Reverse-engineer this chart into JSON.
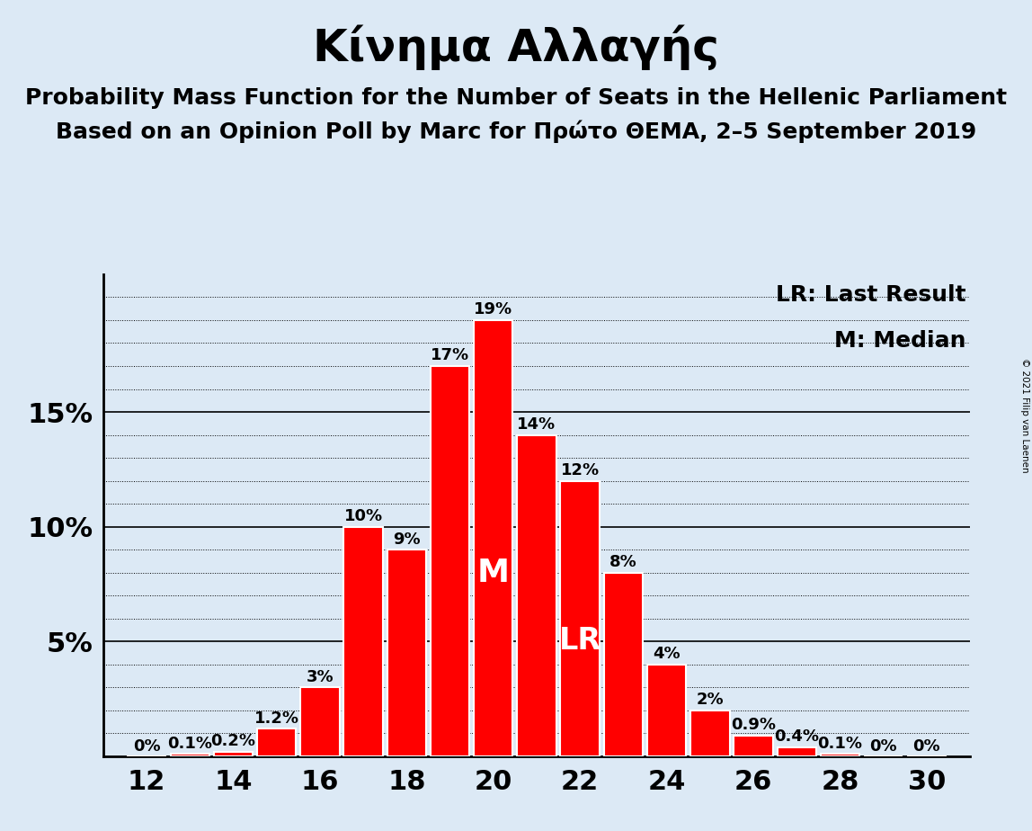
{
  "title": "Κίνημα Αλλαγής",
  "subtitle1": "Probability Mass Function for the Number of Seats in the Hellenic Parliament",
  "subtitle2": "Based on an Opinion Poll by Marc for Πρώτο ΘΕΜΑ, 2–5 September 2019",
  "copyright": "© 2021 Filip van Laenen",
  "seats": [
    12,
    13,
    14,
    15,
    16,
    17,
    18,
    19,
    20,
    21,
    22,
    23,
    24,
    25,
    26,
    27,
    28,
    29,
    30
  ],
  "values": [
    0.0,
    0.1,
    0.2,
    1.2,
    3.0,
    10.0,
    9.0,
    17.0,
    19.0,
    14.0,
    12.0,
    8.0,
    4.0,
    2.0,
    0.9,
    0.4,
    0.1,
    0.0,
    0.0
  ],
  "labels": [
    "0%",
    "0.1%",
    "0.2%",
    "1.2%",
    "3%",
    "10%",
    "9%",
    "17%",
    "19%",
    "14%",
    "12%",
    "8%",
    "4%",
    "2%",
    "0.9%",
    "0.4%",
    "0.1%",
    "0%",
    "0%"
  ],
  "bar_color": "#FF0000",
  "background_color": "#dce9f5",
  "median_seat": 20,
  "last_result_seat": 22,
  "median_label": "M",
  "last_result_label": "LR",
  "legend_lr": "LR: Last Result",
  "legend_m": "M: Median",
  "solid_yticks": [
    5,
    10,
    15
  ],
  "dotted_yticks": [
    1,
    2,
    3,
    4,
    6,
    7,
    8,
    9,
    11,
    12,
    13,
    14,
    16,
    17,
    18,
    19,
    20
  ],
  "ytick_labels_pos": [
    5,
    10,
    15
  ],
  "ytick_labels": [
    "5%",
    "10%",
    "15%"
  ],
  "xticks": [
    12,
    14,
    16,
    18,
    20,
    22,
    24,
    26,
    28,
    30
  ],
  "ylim": [
    0,
    21
  ],
  "title_fontsize": 36,
  "subtitle_fontsize": 18,
  "label_fontsize": 13,
  "axis_fontsize": 22,
  "legend_fontsize": 18,
  "inbar_fontsize": 26
}
